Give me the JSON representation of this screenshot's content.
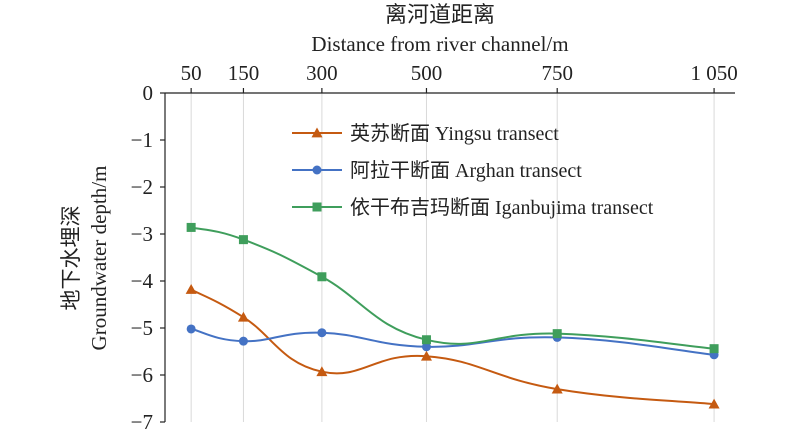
{
  "chart_data": {
    "type": "line",
    "title_cn": "离河道距离",
    "xlabel": "Distance from river channel/m",
    "ylabel_cn": "地下水埋深",
    "ylabel": "Groundwater depth/m",
    "x": [
      50,
      150,
      300,
      500,
      750,
      1050
    ],
    "x_tick_labels": [
      "50",
      "150",
      "300",
      "500",
      "750",
      "1 050"
    ],
    "y_ticks": [
      0,
      -1,
      -2,
      -3,
      -4,
      -5,
      -6,
      -7
    ],
    "y_tick_labels": [
      "0",
      "−1",
      "−2",
      "−3",
      "−4",
      "−5",
      "−6",
      "−7"
    ],
    "ylim": [
      -7,
      0
    ],
    "x_axis_position": "top",
    "y_gridlines": false,
    "x_gridlines": true,
    "legend_position": "upper-right",
    "series": [
      {
        "name": "英苏断面 Yingsu transect",
        "color": "#c55a11",
        "marker": "triangle",
        "values": [
          -4.18,
          -4.77,
          -5.93,
          -5.6,
          -6.3,
          -6.62
        ]
      },
      {
        "name": "阿拉干断面 Arghan transect",
        "color": "#4472c4",
        "marker": "circle",
        "values": [
          -5.02,
          -5.28,
          -5.1,
          -5.4,
          -5.2,
          -5.57
        ]
      },
      {
        "name": "依干布吉玛断面 Iganbujima transect",
        "color": "#3f9e5c",
        "marker": "square",
        "values": [
          -2.86,
          -3.12,
          -3.91,
          -5.25,
          -5.12,
          -5.44
        ]
      }
    ]
  }
}
